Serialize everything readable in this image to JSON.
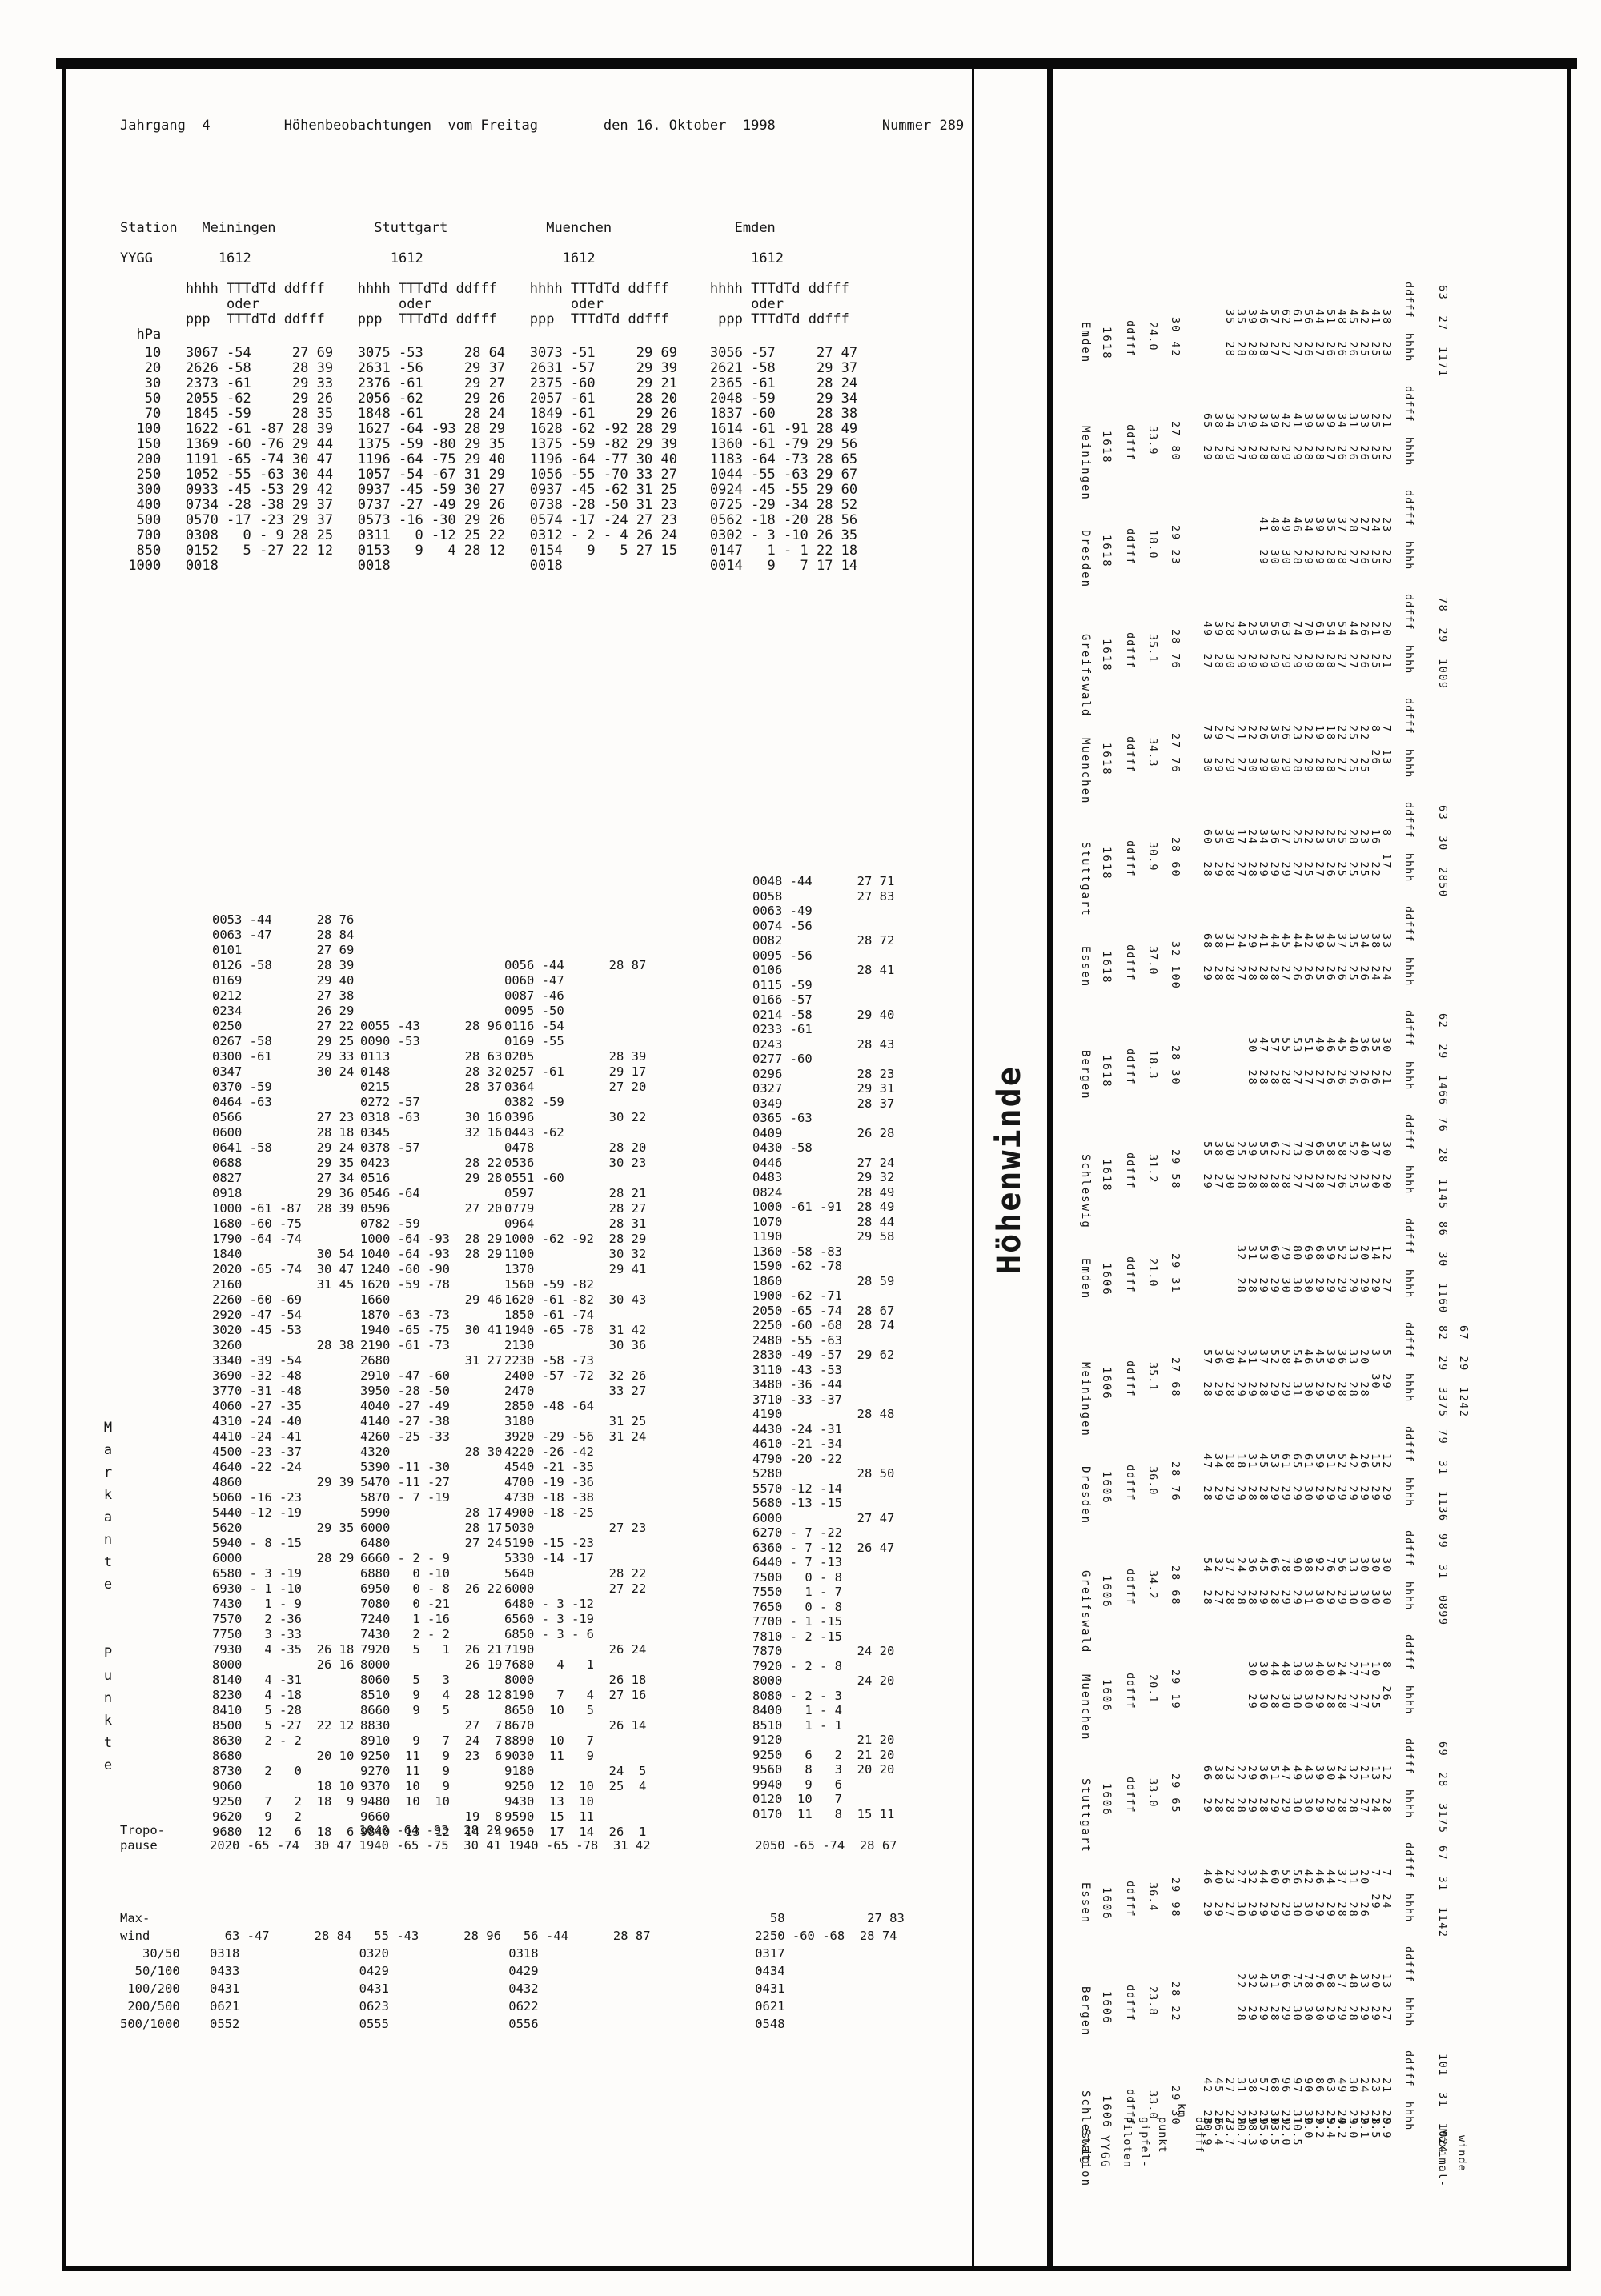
{
  "header": {
    "line": "Jahrgang  4         Höhenbeobachtungen  vom Freitag        den 16. Oktober  1998             Nummer 289"
  },
  "left": {
    "station_header_lines": [
      "Station   Meiningen            Stuttgart            Muenchen               Emden",
      "",
      "YYGG        1612                 1612                 1612                   1612",
      "",
      "        hhhh TTTdTd ddfff    hhhh TTTdTd ddfff    hhhh TTTdTd ddfff     hhhh TTTdTd ddfff",
      "             oder                 oder                 oder                  oder",
      "        ppp  TTTdTd ddfff    ppp  TTTdTd ddfff    ppp  TTTdTd ddfff      ppp TTTdTd ddfff",
      "  hPa"
    ],
    "main_table_lines": [
      "   10   3067 -54     27 69   3075 -53     28 64   3073 -51     29 69    3056 -57     27 47",
      "   20   2626 -58     28 39   2631 -56     29 37   2631 -57     29 39    2621 -58     29 37",
      "   30   2373 -61     29 33   2376 -61     29 27   2375 -60     29 21    2365 -61     28 24",
      "   50   2055 -62     29 26   2056 -62     29 26   2057 -61     28 20    2048 -59     29 34",
      "   70   1845 -59     28 35   1848 -61     28 24   1849 -61     29 26    1837 -60     28 38",
      "  100   1622 -61 -87 28 39   1627 -64 -93 28 29   1628 -62 -92 28 29    1614 -61 -91 28 49",
      "  150   1369 -60 -76 29 44   1375 -59 -80 29 35   1375 -59 -82 29 39    1360 -61 -79 29 56",
      "  200   1191 -65 -74 30 47   1196 -64 -75 29 40   1196 -64 -77 30 40    1183 -64 -73 28 65",
      "  250   1052 -55 -63 30 44   1057 -54 -67 31 29   1056 -55 -70 33 27    1044 -55 -63 29 67",
      "  300   0933 -45 -53 29 42   0937 -45 -59 30 27   0937 -45 -62 31 25    0924 -45 -55 29 60",
      "  400   0734 -28 -38 29 37   0737 -27 -49 29 26   0738 -28 -50 31 23    0725 -29 -34 28 52",
      "  500   0570 -17 -23 29 37   0573 -16 -30 29 26   0574 -17 -24 27 23    0562 -18 -20 28 56",
      "  700   0308   0 - 9 28 25   0311   0 -12 25 22   0312 - 2 - 4 26 24    0302 - 3 -10 26 35",
      "  850   0152   5 -27 22 12   0153   9   4 28 12   0154   9   5 27 15    0147   1 - 1 22 18",
      " 1000   0018                 0018                 0018                  0014   9   7 17 14"
    ],
    "markante_label_1": "Markante",
    "markante_label_2": "Punkte",
    "meiningen_lines": [
      "0053 -44      28 76",
      "0063 -47      28 84",
      "0101          27 69",
      "0126 -58      28 39",
      "0169          29 40",
      "0212          27 38",
      "0234          26 29",
      "0250          27 22",
      "0267 -58      29 25",
      "0300 -61      29 33",
      "0347          30 24",
      "0370 -59",
      "0464 -63",
      "0566          27 23",
      "0600          28 18",
      "0641 -58      29 24",
      "0688          29 35",
      "0827          27 34",
      "0918          29 36",
      "1000 -61 -87  28 39",
      "1680 -60 -75",
      "1790 -64 -74",
      "1840          30 54",
      "2020 -65 -74  30 47",
      "2160          31 45",
      "2260 -60 -69",
      "2920 -47 -54",
      "3020 -45 -53",
      "3260          28 38",
      "3340 -39 -54",
      "3690 -32 -48",
      "3770 -31 -48",
      "4060 -27 -35",
      "4310 -24 -40",
      "4410 -24 -41",
      "4500 -23 -37",
      "4640 -22 -24",
      "4860          29 39",
      "5060 -16 -23",
      "5440 -12 -19",
      "5620          29 35",
      "5940 - 8 -15",
      "6000          28 29",
      "6580 - 3 -19",
      "6930 - 1 -10",
      "7430   1 - 9",
      "7570   2 -36",
      "7750   3 -33",
      "7930   4 -35  26 18",
      "8000          26 16",
      "8140   4 -31",
      "8230   4 -18",
      "8410   5 -28",
      "8500   5 -27  22 12",
      "8630   2 - 2",
      "8680          20 10",
      "8730   2   0",
      "9060          18 10",
      "9250   7   2  18  9",
      "9620   9   2",
      "9680  12   6  18  6"
    ],
    "stuttgart_lines": [
      "0055 -43      28 96",
      "0090 -53",
      "0113          28 63",
      "0148          28 32",
      "0215          28 37",
      "0272 -57",
      "0318 -63      30 16",
      "0345          32 16",
      "0378 -57",
      "0423          28 22",
      "0516          29 28",
      "0546 -64",
      "0596          27 20",
      "0782 -59",
      "1000 -64 -93  28 29",
      "1040 -64 -93  28 29",
      "1240 -60 -90",
      "1620 -59 -78",
      "1660          29 46",
      "1870 -63 -73",
      "1940 -65 -75  30 41",
      "2190 -61 -73",
      "2680          31 27",
      "2910 -47 -60",
      "3950 -28 -50",
      "4040 -27 -49",
      "4140 -27 -38",
      "4260 -25 -33",
      "4320          28 30",
      "5390 -11 -30",
      "5470 -11 -27",
      "5870 - 7 -19",
      "5990          28 17",
      "6000          28 17",
      "6480          27 24",
      "6660 - 2 - 9",
      "6880   0 -10",
      "6950   0 - 8  26 22",
      "7080   0 -21",
      "7240   1 -16",
      "7430   2 - 2",
      "7920   5   1  26 21",
      "8000          26 19",
      "8060   5   3",
      "8510   9   4  28 12",
      "8660   9   5",
      "8830          27  7",
      "8910   9   7  24  7",
      "9250  11   9  23  6",
      "9270  11   9",
      "9370  10   9",
      "9480  10  10",
      "9660          19  8",
      "9840  13  12  14  4"
    ],
    "muenchen_lines": [
      "0056 -44      28 87",
      "0060 -47",
      "0087 -46",
      "0095 -50",
      "0116 -54",
      "0169 -55",
      "0205          28 39",
      "0257 -61      29 17",
      "0364          27 20",
      "0382 -59",
      "0396          30 22",
      "0443 -62",
      "0478          28 20",
      "0536          30 23",
      "0551 -60",
      "0597          28 21",
      "0779          28 27",
      "0964          28 31",
      "1000 -62 -92  28 29",
      "1100          30 32",
      "1370          29 41",
      "1560 -59 -82",
      "1620 -61 -82  30 43",
      "1850 -61 -74",
      "1940 -65 -78  31 42",
      "2130          30 36",
      "2230 -58 -73",
      "2400 -57 -72  32 26",
      "2470          33 27",
      "2850 -48 -64",
      "3180          31 25",
      "3920 -29 -56  31 24",
      "4220 -26 -42",
      "4540 -21 -35",
      "4700 -19 -36",
      "4730 -18 -38",
      "4900 -18 -25",
      "5030          27 23",
      "5190 -15 -23",
      "5330 -14 -17",
      "5640          28 22",
      "6000          27 22",
      "6480 - 3 -12",
      "6560 - 3 -19",
      "6850 - 3 - 6",
      "7190          26 24",
      "7680   4   1",
      "8000          26 18",
      "8190   7   4  27 16",
      "8650  10   5",
      "8670          26 14",
      "8890  10   7",
      "9030  11   9",
      "9180          24  5",
      "9250  12  10  25  4",
      "9430  13  10",
      "9590  15  11",
      "9650  17  14  26  1"
    ],
    "emden_lines": [
      "0048 -44      27 71",
      "0058          27 83",
      "0063 -49",
      "0074 -56",
      "0082          28 72",
      "0095 -56",
      "0106          28 41",
      "0115 -59",
      "0166 -57",
      "0214 -58      29 40",
      "0233 -61",
      "0243          28 43",
      "0277 -60",
      "0296          28 23",
      "0327          29 31",
      "0349          28 37",
      "0365 -63",
      "0409          26 28",
      "0430 -58",
      "0446          27 24",
      "0483          29 32",
      "0824          28 49",
      "1000 -61 -91  28 49",
      "1070          28 44",
      "1190          29 58",
      "1360 -58 -83",
      "1590 -62 -78",
      "1860          28 59",
      "1900 -62 -71",
      "2050 -65 -74  28 67",
      "2250 -60 -68  28 74",
      "2480 -55 -63",
      "2830 -49 -57  29 62",
      "3110 -43 -53",
      "3480 -36 -44",
      "3710 -33 -37",
      "4190          28 48",
      "4430 -24 -31",
      "4610 -21 -34",
      "4790 -20 -22",
      "5280          28 50",
      "5570 -12 -14",
      "5680 -13 -15",
      "6000          27 47",
      "6270 - 7 -22",
      "6360 - 7 -12  26 47",
      "6440 - 7 -13",
      "7500   0 - 8",
      "7550   1 - 7",
      "7650   0 - 8",
      "7700 - 1 -15",
      "7810 - 2 -15",
      "7870          24 20",
      "7920 - 2 - 8",
      "8000          24 20",
      "8080 - 2 - 3",
      "8400   1 - 4",
      "8510   1 - 1",
      "9120          21 20",
      "9250   6   2  21 20",
      "9560   8   3  20 20",
      "9940   9   6",
      "0120  10   7",
      "0170  11   8  15 11"
    ],
    "tropo_lines": [
      "Tropo-                          1040 -64 -93  28 29",
      "pause       2020 -65 -74  30 47 1940 -65 -75  30 41 1940 -65 -78  31 42              2050 -65 -74  28 67"
    ],
    "maxwind_lines": [
      "Max-                                                                                   58           27 83",
      "wind          63 -47      28 84   55 -43      28 96   56 -44      28 87              2250 -60 -68  28 74",
      "   30/50    0318                0320                0318                             0317",
      "  50/100    0433                0429                0429                             0434",
      " 100/200    0431                0431                0432                             0431",
      " 200/500    0621                0623                0622                             0621",
      "500/1000    0552                0555                0556                             0548"
    ]
  },
  "hoehenwinde": {
    "title": "Höhenwinde",
    "labels": {
      "station": "Station",
      "yygg": "YYGG",
      "piloten": "Piloten",
      "gipfel": "gipfel-",
      "punkt": "punkt",
      "km": "km",
      "ddfff": "ddfff",
      "maximal": "Maximal-",
      "winde": "winde",
      "maxwind_header": "hhhh ddfff"
    },
    "heights_km": [
      "30.9",
      "26.4",
      "23.7",
      "20.7",
      "18.3",
      "15.9",
      "13.5",
      "12.0",
      "10.5",
      "9.0",
      "7.2",
      "5.4",
      "4.2",
      "3.0",
      "2.1",
      "1.5",
      "0.9"
    ],
    "stations": [
      {
        "name": "Emden",
        "time": "1618",
        "gipfel_km": "24.0",
        "gipfel_wind": "30 42",
        "start": 2,
        "winds": [
          "28 35",
          "28 35",
          "28 39",
          "28 46",
          "27 57",
          "27 62",
          "27 61",
          "26 56",
          "27 44",
          "26 51",
          "26 48",
          "26 45",
          "25 42",
          "25 41",
          "23 38"
        ],
        "max": [
          "1171 27 63"
        ]
      },
      {
        "name": "Meiningen",
        "time": "1618",
        "gipfel_km": "33.9",
        "gipfel_wind": "27 80",
        "start": 0,
        "winds": [
          "29 65",
          "28 38",
          "29 34",
          "27 25",
          "29 29",
          "28 34",
          "28 39",
          "29 42",
          "29 41",
          "28 39",
          "28 33",
          "27 39",
          "26 34",
          "26 31",
          "26 33",
          "25 25",
          "22 21"
        ],
        "max": []
      },
      {
        "name": "Dresden",
        "time": "1618",
        "gipfel_km": "18.0",
        "gipfel_wind": "29 23",
        "start": 5,
        "winds": [
          "29 41",
          "30 48",
          "30 49",
          "28 46",
          "29 34",
          "29 39",
          "28 35",
          "28 37",
          "27 28",
          "26 27",
          "25 24",
          "22 23"
        ],
        "max": []
      },
      {
        "name": "Greifswald",
        "time": "1618",
        "gipfel_km": "35.1",
        "gipfel_wind": "28 76",
        "start": 0,
        "winds": [
          "27 49",
          "28 39",
          "30 28",
          "29 42",
          "29 25",
          "29 53",
          "29 56",
          "29 63",
          "29 74",
          "29 70",
          "28 61",
          "28 54",
          "27 54",
          "27 44",
          "26 26",
          "25 21",
          "21 20"
        ],
        "max": [
          "1009 29 78"
        ]
      },
      {
        "name": "Muenchen",
        "time": "1618",
        "gipfel_km": "34.3",
        "gipfel_wind": "27 76",
        "start": 0,
        "winds": [
          "30 73",
          "29 29",
          "29 27",
          "27 21",
          "30 22",
          "29 26",
          "30 35",
          "29 26",
          "28 23",
          "29 22",
          "28 19",
          "28 18",
          "27 22",
          "25 25",
          "25 22",
          "26  8",
          "13  7"
        ],
        "max": []
      },
      {
        "name": "Stuttgart",
        "time": "1618",
        "gipfel_km": "30.9",
        "gipfel_wind": "28 60",
        "start": 0,
        "winds": [
          "28 60",
          "29 35",
          "28 30",
          "27 17",
          "28 24",
          "29 34",
          "29 36",
          "29 27",
          "27 25",
          "25 22",
          "27 23",
          "26 25",
          "25 25",
          "25 28",
          "25 23",
          "22 16",
          "17  8"
        ],
        "max": [
          "2850 30 63"
        ]
      },
      {
        "name": "Essen",
        "time": "1618",
        "gipfel_km": "37.0",
        "gipfel_wind": "32 100",
        "start": 0,
        "winds": [
          "29 68",
          "28 38",
          "28 31",
          "27 24",
          "28 29",
          "28 41",
          "28 44",
          "27 45",
          "26 44",
          "26 42",
          "25 39",
          "26 43",
          "26 37",
          "25 35",
          "26 34",
          "24 38",
          "24 33"
        ],
        "max": []
      },
      {
        "name": "Bergen",
        "time": "1618",
        "gipfel_km": "18.3",
        "gipfel_wind": "28 30",
        "start": 4,
        "winds": [
          "28 30",
          "28 47",
          "28 57",
          "28 55",
          "27 53",
          "27 51",
          "27 49",
          "26 46",
          "26 45",
          "26 40",
          "26 36",
          "26 35",
          "21 30"
        ],
        "max": [
          "1466 29 62"
        ]
      },
      {
        "name": "Schleswig",
        "time": "1618",
        "gipfel_km": "31.2",
        "gipfel_wind": "29 58",
        "start": 0,
        "winds": [
          "29 55",
          "27 38",
          "30 30",
          "28 25",
          "28 39",
          "28 55",
          "28 62",
          "28 72",
          "27 73",
          "27 70",
          "28 65",
          "27 58",
          "26 58",
          "25 52",
          "23 40",
          "20 37",
          "20 30"
        ],
        "max": [
          "1145 28 76"
        ]
      },
      {
        "name": "Emden",
        "time": "1606",
        "gipfel_km": "21.0",
        "gipfel_wind": "29 31",
        "start": 3,
        "winds": [
          "28 32",
          "28 31",
          "29 53",
          "29 60",
          "30 79",
          "30 80",
          "30 69",
          "29 68",
          "29 59",
          "29 52",
          "29 33",
          "29 20",
          "29 14",
          "27 12"
        ],
        "max": [
          "1160 30 86"
        ]
      },
      {
        "name": "Meiningen",
        "time": "1606",
        "gipfel_km": "35.1",
        "gipfel_wind": "27 68",
        "start": 0,
        "winds": [
          "28 57",
          "29 36",
          "28 30",
          "29 24",
          "29 31",
          "28 37",
          "29 52",
          "29 58",
          "31 54",
          "30 46",
          "29 45",
          "29 39",
          "28 36",
          "28 33",
          "28 20",
          "30  3",
          "29  5"
        ],
        "max": [
          "3375 29 82",
          "1242 29 67"
        ]
      },
      {
        "name": "Dresden",
        "time": "1606",
        "gipfel_km": "36.0",
        "gipfel_wind": "28 76",
        "start": 0,
        "winds": [
          "28 47",
          "29 34",
          "29 18",
          "29 18",
          "28 31",
          "28 45",
          "29 53",
          "29 61",
          "29 65",
          "30 61",
          "29 59",
          "29 51",
          "29 52",
          "29 42",
          "29 26",
          "29 15",
          "29 12"
        ],
        "max": [
          "1136 31 79"
        ]
      },
      {
        "name": "Greifswald",
        "time": "1606",
        "gipfel_km": "34.2",
        "gipfel_wind": "28 68",
        "start": 0,
        "winds": [
          "28 54",
          "27 32",
          "28 37",
          "28 24",
          "28 36",
          "29 45",
          "28 66",
          "29 78",
          "29 90",
          "31 98",
          "30 92",
          "29 76",
          "29 56",
          "30 33",
          "30 30",
          "30 30",
          "30 30"
        ],
        "max": [
          "0899 31 99"
        ]
      },
      {
        "name": "Muenchen",
        "time": "1606",
        "gipfel_km": "20.1",
        "gipfel_wind": "29 19",
        "start": 4,
        "winds": [
          "29 30",
          "30 30",
          "28 44",
          "30 48",
          "30 39",
          "30 38",
          "29 40",
          "28 30",
          "28 24",
          "27 27",
          "27 17",
          "25 10",
          "26  8"
        ],
        "max": []
      },
      {
        "name": "Stuttgart",
        "time": "1606",
        "gipfel_km": "33.0",
        "gipfel_wind": "29 65",
        "start": 0,
        "winds": [
          "29 66",
          "28 38",
          "28 23",
          "28 22",
          "29 29",
          "28 36",
          "29 51",
          "29 47",
          "30 49",
          "30 43",
          "29 39",
          "29 30",
          "28 24",
          "28 32",
          "27 21",
          "24 13",
          "28 12"
        ],
        "max": [
          "3175 28 69"
        ]
      },
      {
        "name": "Essen",
        "time": "1606",
        "gipfel_km": "36.4",
        "gipfel_wind": "29 98",
        "start": 0,
        "winds": [
          "29 46",
          "29 40",
          "27 23",
          "30 27",
          "29 32",
          "29 44",
          "29 60",
          "29 56",
          "30 56",
          "30 42",
          "29 46",
          "29 44",
          "28 37",
          "28 31",
          "26 20",
          "29  7",
          "24  7"
        ],
        "max": [
          "1142 31 67"
        ]
      },
      {
        "name": "Bergen",
        "time": "1606",
        "gipfel_km": "23.8",
        "gipfel_wind": "28 22",
        "start": 3,
        "winds": [
          "28 22",
          "29 32",
          "29 43",
          "28 51",
          "29 66",
          "30 75",
          "30 78",
          "30 76",
          "29 68",
          "29 57",
          "28 48",
          "29 33",
          "29 20",
          "27 13"
        ],
        "max": []
      },
      {
        "name": "Schleswig",
        "time": "1606",
        "gipfel_km": "33.0",
        "gipfel_wind": "29 30",
        "start": 0,
        "winds": [
          "28 42",
          "26 45",
          "27 27",
          "28 31",
          "29 38",
          "29 57",
          "30 68",
          "29 96",
          "31 97",
          "30 90",
          "29 86",
          "29 63",
          "29 49",
          "29 30",
          "29 24",
          "28 23",
          "29 21"
        ],
        "max": [
          "1024 31 101"
        ]
      }
    ]
  }
}
